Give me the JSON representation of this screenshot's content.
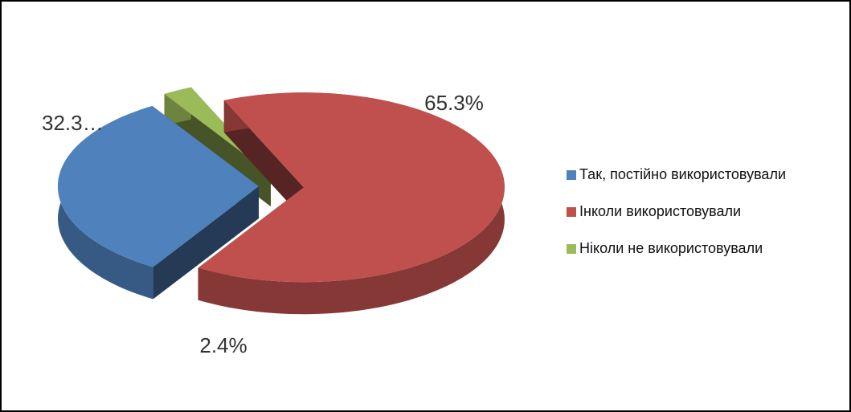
{
  "chart_data": {
    "type": "pie3d",
    "categories": [
      "Так, постійно використовували",
      "Інколи використовували",
      "Ніколи не використовували"
    ],
    "values": [
      32.3,
      65.3,
      2.4
    ],
    "value_labels": [
      "32.3…",
      "65.3%",
      "2.4%"
    ],
    "colors": [
      "#4f81bd",
      "#c0504d",
      "#9bbb59"
    ],
    "legend": "right"
  }
}
